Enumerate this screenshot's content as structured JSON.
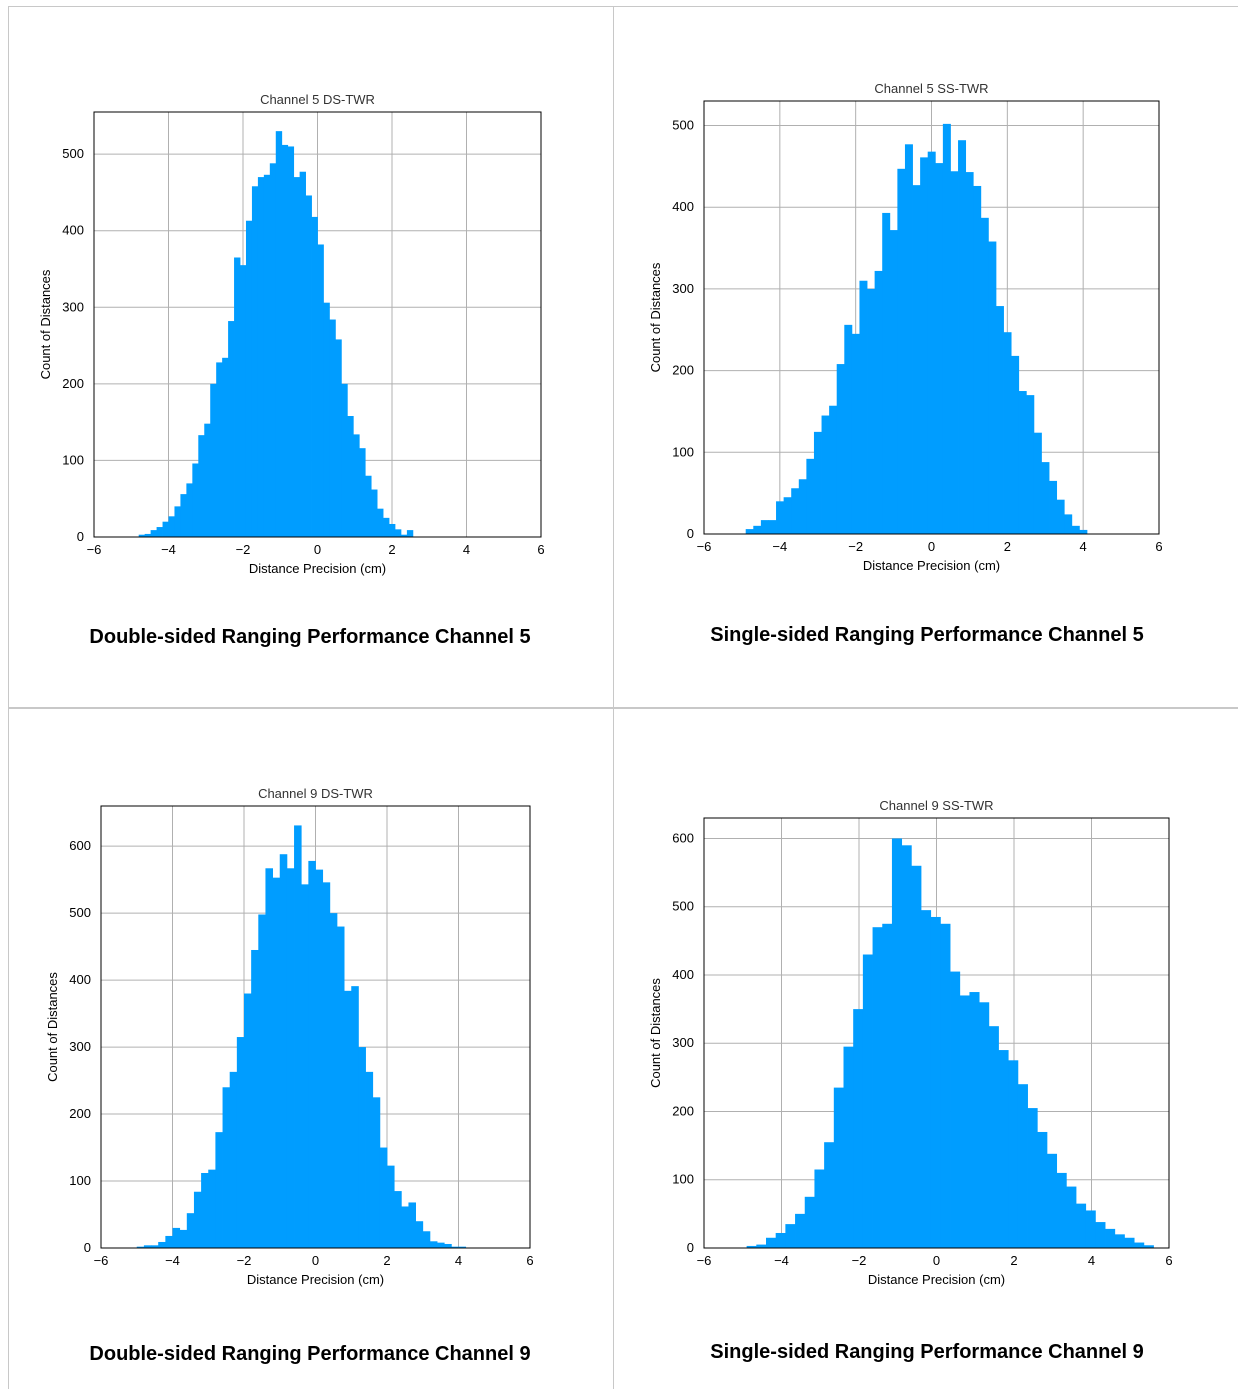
{
  "panels": [
    {
      "caption": "Double-sided Ranging Performance Channel 5"
    },
    {
      "caption": "Single-sided Ranging Performance Channel 5"
    },
    {
      "caption": "Double-sided Ranging Performance Channel 9"
    },
    {
      "caption": "Single-sided Ranging Performance Channel 9"
    }
  ],
  "chart_data": [
    {
      "type": "bar",
      "title": "Channel 5 DS-TWR",
      "xlabel": "Distance Precision (cm)",
      "ylabel": "Count of Distances",
      "xlim": [
        -6,
        6
      ],
      "ylim": [
        0,
        555
      ],
      "xticks": [
        -6,
        -4,
        -2,
        0,
        2,
        4,
        6
      ],
      "yticks": [
        0,
        100,
        200,
        300,
        400,
        500
      ],
      "grid": true,
      "color": "#009dff",
      "bins_x0": -4.8,
      "bin_width": 0.16,
      "values": [
        3,
        4,
        9,
        13,
        20,
        27,
        40,
        56,
        70,
        96,
        133,
        148,
        200,
        228,
        234,
        282,
        365,
        355,
        413,
        458,
        470,
        473,
        488,
        530,
        512,
        510,
        470,
        477,
        446,
        418,
        382,
        306,
        284,
        258,
        200,
        158,
        134,
        116,
        80,
        62,
        37,
        25,
        17,
        10,
        3,
        9
      ]
    },
    {
      "type": "bar",
      "title": "Channel 5 SS-TWR",
      "xlabel": "Distance Precision (cm)",
      "ylabel": "Count of Distances",
      "xlim": [
        -6,
        6
      ],
      "ylim": [
        0,
        530
      ],
      "xticks": [
        -6,
        -4,
        -2,
        0,
        2,
        4,
        6
      ],
      "yticks": [
        0,
        100,
        200,
        300,
        400,
        500
      ],
      "grid": true,
      "color": "#009dff",
      "bins_x0": -4.9,
      "bin_width": 0.2,
      "values": [
        6,
        10,
        17,
        17,
        40,
        45,
        56,
        67,
        92,
        125,
        145,
        157,
        208,
        256,
        245,
        310,
        300,
        322,
        393,
        372,
        447,
        477,
        427,
        461,
        468,
        454,
        502,
        444,
        482,
        443,
        426,
        387,
        358,
        279,
        247,
        218,
        175,
        170,
        124,
        88,
        65,
        42,
        24,
        10,
        5
      ]
    },
    {
      "type": "bar",
      "title": "Channel 9 DS-TWR",
      "xlabel": "Distance Precision (cm)",
      "ylabel": "Count of Distances",
      "xlim": [
        -6,
        6
      ],
      "ylim": [
        0,
        660
      ],
      "xticks": [
        -6,
        -4,
        -2,
        0,
        2,
        4,
        6
      ],
      "yticks": [
        0,
        100,
        200,
        300,
        400,
        500,
        600
      ],
      "grid": true,
      "color": "#009dff",
      "bins_x0": -5.0,
      "bin_width": 0.2,
      "values": [
        2,
        4,
        4,
        9,
        18,
        30,
        27,
        52,
        84,
        112,
        117,
        173,
        240,
        263,
        315,
        380,
        445,
        498,
        567,
        553,
        588,
        567,
        631,
        543,
        578,
        565,
        546,
        500,
        480,
        384,
        391,
        300,
        263,
        225,
        150,
        123,
        85,
        62,
        68,
        40,
        25,
        10,
        8,
        6,
        2,
        2
      ]
    },
    {
      "type": "bar",
      "title": "Channel 9 SS-TWR",
      "xlabel": "Distance Precision (cm)",
      "ylabel": "Count of Distances",
      "xlim": [
        -6,
        6
      ],
      "ylim": [
        0,
        630
      ],
      "xticks": [
        -6,
        -4,
        -2,
        0,
        2,
        4,
        6
      ],
      "yticks": [
        0,
        100,
        200,
        300,
        400,
        500,
        600
      ],
      "grid": true,
      "color": "#009dff",
      "bins_x0": -4.9,
      "bin_width": 0.25,
      "values": [
        3,
        5,
        15,
        22,
        35,
        50,
        75,
        115,
        155,
        235,
        295,
        350,
        430,
        470,
        475,
        600,
        590,
        560,
        495,
        485,
        475,
        405,
        370,
        375,
        360,
        325,
        290,
        275,
        240,
        205,
        170,
        138,
        110,
        90,
        65,
        55,
        38,
        28,
        20,
        15,
        8,
        4
      ]
    }
  ]
}
